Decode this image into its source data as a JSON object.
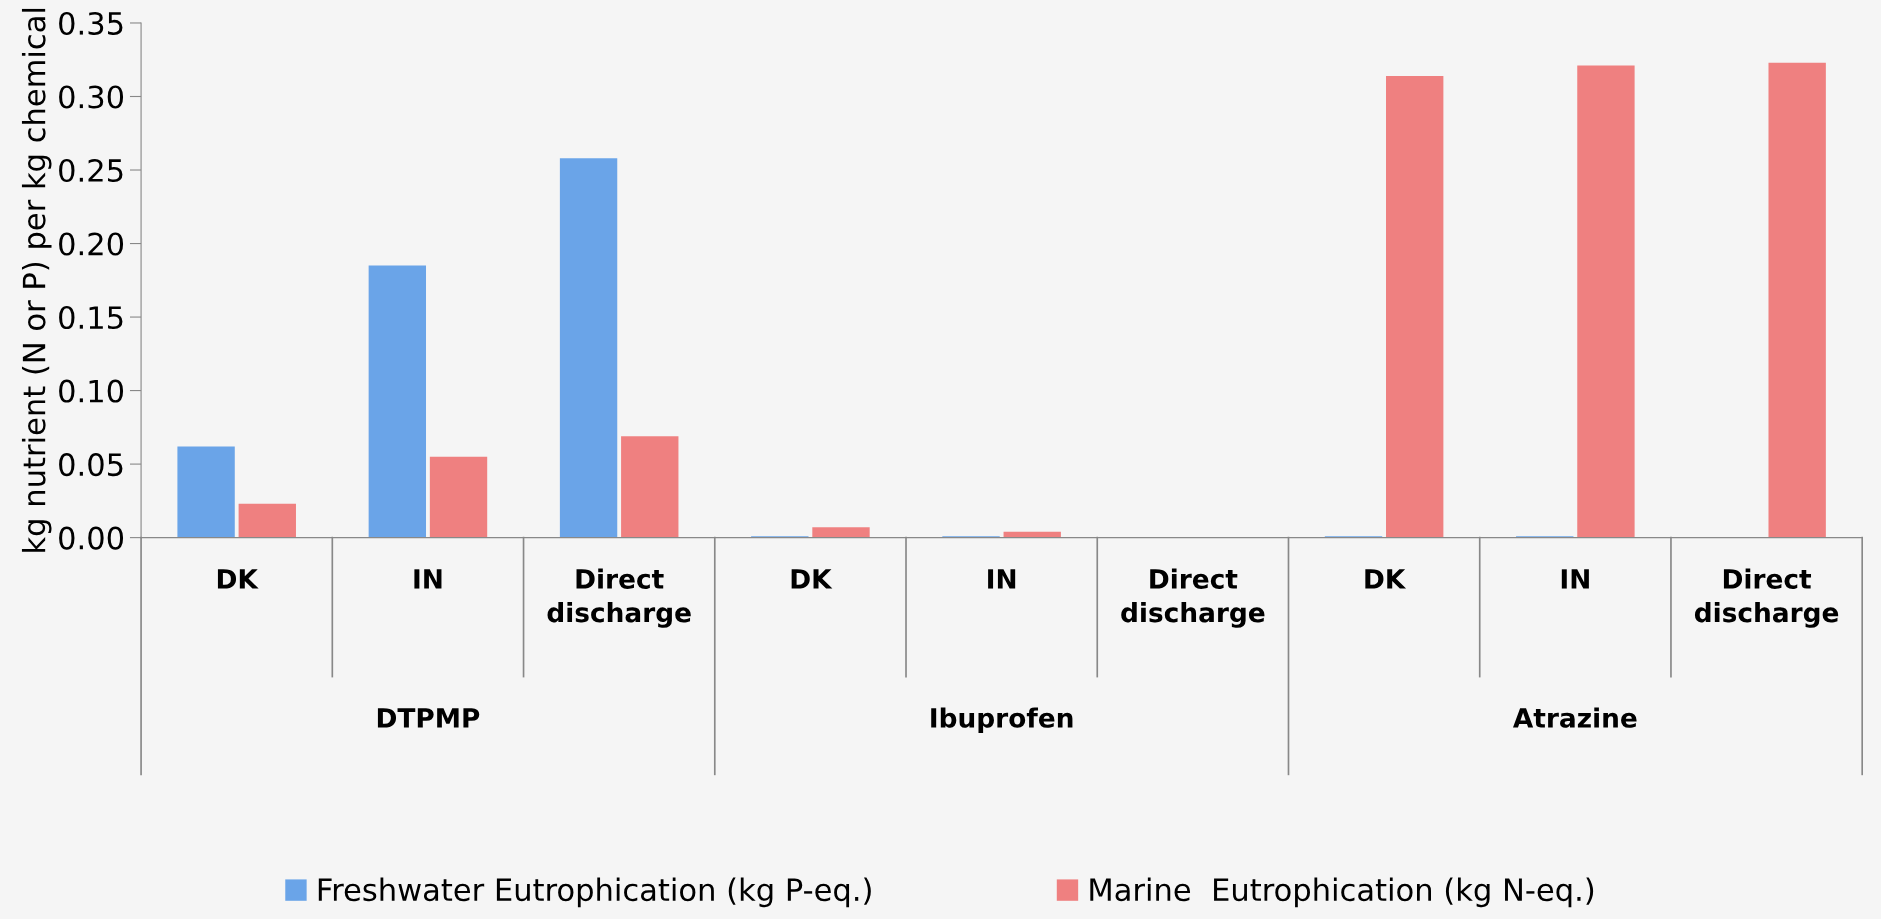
{
  "chart_data": {
    "type": "bar",
    "ylabel": "kg nutrient (N or P) per kg chemical",
    "categories": [
      "DK",
      "IN",
      "Direct\ndischarge",
      "DK",
      "IN",
      "Direct\ndischarge",
      "DK",
      "IN",
      "Direct\ndischarge"
    ],
    "annotations": [
      "DTPMP",
      "Ibuprofen",
      "Atrazine"
    ],
    "series": [
      {
        "name": "Freshwater Eutrophication (kg P-eq.)",
        "color": "#6aa4e8",
        "values": [
          0.062,
          0.185,
          0.258,
          0.001,
          0.001,
          0,
          0.001,
          0.001,
          0
        ]
      },
      {
        "name": "Marine  Eutrophication (kg N-eq.)",
        "color": "#ef8080",
        "values": [
          0.023,
          0.055,
          0.069,
          0.007,
          0.004,
          0,
          0.314,
          0.321,
          0.323
        ]
      }
    ],
    "ylim": [
      0,
      0.35
    ],
    "yticks": [
      {
        "value": 0,
        "label": "0.00"
      },
      {
        "value": 0.05,
        "label": "0.05"
      },
      {
        "value": 0.1,
        "label": "0.10"
      },
      {
        "value": 0.15,
        "label": "0.15"
      },
      {
        "value": 0.2,
        "label": "0.20"
      },
      {
        "value": 0.25,
        "label": "0.25"
      },
      {
        "value": 0.3,
        "label": "0.30"
      },
      {
        "value": 0.35,
        "label": "0.35"
      }
    ],
    "grid": false,
    "legend": "bottom"
  }
}
